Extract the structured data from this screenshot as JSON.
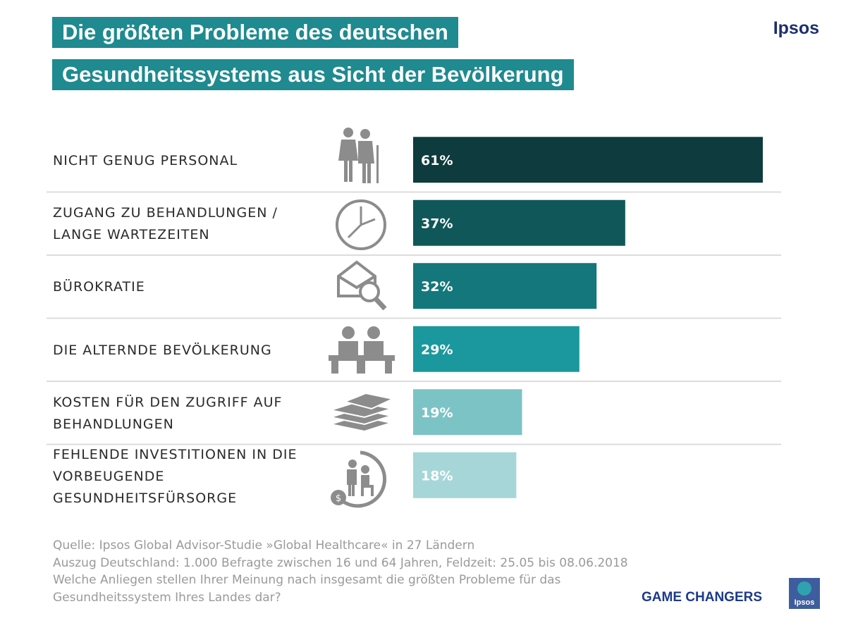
{
  "header": {
    "title_line1": "Die größten Probleme des deutschen",
    "title_line2": "Gesundheitssystems aus Sicht der Bevölkerung",
    "brand": "Ipsos"
  },
  "chart_data": {
    "type": "bar",
    "orientation": "horizontal",
    "title": "Die größten Probleme des deutschen Gesundheitssystems aus Sicht der Bevölkerung",
    "categories": [
      "NICHT GENUG PERSONAL",
      "ZUGANG ZU BEHANDLUNGEN /\nLANGE WARTEZEITEN",
      "BÜROKRATIE",
      "DIE ALTERNDE BEVÖLKERUNG",
      "KOSTEN FÜR DEN ZUGRIFF AUF\nBEHANDLUNGEN",
      "FEHLENDE INVESTITIONEN IN DIE\nVORBEUGENDE\nGESUNDHEITSFÜRSORGE"
    ],
    "values": [
      61,
      37,
      32,
      29,
      19,
      18
    ],
    "value_labels": [
      "61%",
      "37%",
      "32%",
      "29%",
      "19%",
      "18%"
    ],
    "unit": "%",
    "xlim": [
      0,
      61
    ],
    "bar_colors": [
      "#0e3b3d",
      "#105759",
      "#13777b",
      "#1a989d",
      "#7cc3c6",
      "#a6d6d8"
    ],
    "icons": [
      "elderly-couple-icon",
      "clock-icon",
      "envelope-search-icon",
      "seated-elderly-icon",
      "money-stack-icon",
      "care-cycle-icon"
    ],
    "legend": "none",
    "grid": false
  },
  "footer": {
    "source_lines": [
      "Quelle: Ipsos Global Advisor-Studie »Global Healthcare« in 27 Ländern",
      "Auszug Deutschland: 1.000 Befragte zwischen 16 und 64 Jahren, Feldzeit: 25.05 bis 08.06.2018",
      "Welche Anliegen stellen Ihrer Meinung nach insgesamt die größten Probleme für das",
      "Gesundheitssystem Ihres Landes dar?"
    ],
    "tagline": "GAME CHANGERS",
    "logo_text": "Ipsos"
  },
  "colors": {
    "title_bg": "#1f8a8f",
    "brand": "#1d2f6e",
    "icon_gray": "#8c8c8c",
    "divider": "#dcdcdc"
  }
}
